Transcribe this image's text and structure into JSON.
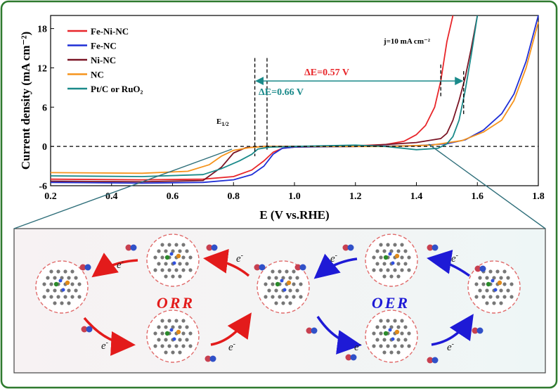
{
  "chart_data": {
    "type": "line",
    "title": "",
    "xlabel": "E (V vs.RHE)",
    "ylabel": "Current density (mA cm⁻²)",
    "xlim": [
      0.2,
      1.8
    ],
    "ylim": [
      -6,
      20
    ],
    "xticks": [
      0.2,
      0.4,
      0.6,
      0.8,
      1.0,
      1.2,
      1.4,
      1.6,
      1.8
    ],
    "yticks": [
      -6,
      0,
      6,
      12,
      18
    ],
    "legend_position": "top-left",
    "grid": false,
    "series": [
      {
        "name": "Fe-Ni-NC",
        "color": "#e8262a",
        "points": [
          [
            0.2,
            -5.0
          ],
          [
            0.5,
            -5.1
          ],
          [
            0.7,
            -5.0
          ],
          [
            0.8,
            -4.6
          ],
          [
            0.86,
            -3.6
          ],
          [
            0.9,
            -2.2
          ],
          [
            0.93,
            -0.9
          ],
          [
            0.96,
            -0.3
          ],
          [
            1.0,
            -0.1
          ],
          [
            1.1,
            0.0
          ],
          [
            1.2,
            0.1
          ],
          [
            1.3,
            0.3
          ],
          [
            1.36,
            0.8
          ],
          [
            1.4,
            1.8
          ],
          [
            1.43,
            3.2
          ],
          [
            1.46,
            6.0
          ],
          [
            1.48,
            10.0
          ],
          [
            1.5,
            16.0
          ],
          [
            1.52,
            20.0
          ]
        ]
      },
      {
        "name": "Fe-NC",
        "color": "#1f2fd6",
        "points": [
          [
            0.2,
            -5.5
          ],
          [
            0.5,
            -5.6
          ],
          [
            0.7,
            -5.5
          ],
          [
            0.8,
            -5.1
          ],
          [
            0.86,
            -4.3
          ],
          [
            0.9,
            -3.0
          ],
          [
            0.93,
            -1.2
          ],
          [
            0.96,
            -0.3
          ],
          [
            1.0,
            -0.1
          ],
          [
            1.2,
            0.0
          ],
          [
            1.4,
            0.1
          ],
          [
            1.5,
            0.4
          ],
          [
            1.56,
            1.0
          ],
          [
            1.62,
            2.5
          ],
          [
            1.68,
            5.0
          ],
          [
            1.72,
            8.0
          ],
          [
            1.76,
            13.0
          ],
          [
            1.8,
            20.0
          ]
        ]
      },
      {
        "name": "Ni-NC",
        "color": "#7a1424",
        "points": [
          [
            0.2,
            -5.3
          ],
          [
            0.5,
            -5.4
          ],
          [
            0.7,
            -5.2
          ],
          [
            0.76,
            -3.2
          ],
          [
            0.8,
            -1.0
          ],
          [
            0.84,
            -0.2
          ],
          [
            0.9,
            0.0
          ],
          [
            1.2,
            0.0
          ],
          [
            1.4,
            0.6
          ],
          [
            1.48,
            1.2
          ],
          [
            1.5,
            2.0
          ],
          [
            1.52,
            4.0
          ],
          [
            1.54,
            7.0
          ],
          [
            1.56,
            10.5
          ],
          [
            1.58,
            15.0
          ],
          [
            1.6,
            20.0
          ]
        ]
      },
      {
        "name": "NC",
        "color": "#f5941d",
        "points": [
          [
            0.2,
            -4.0
          ],
          [
            0.5,
            -4.1
          ],
          [
            0.65,
            -3.8
          ],
          [
            0.72,
            -2.8
          ],
          [
            0.76,
            -1.5
          ],
          [
            0.8,
            -0.6
          ],
          [
            0.85,
            -0.2
          ],
          [
            0.9,
            0.0
          ],
          [
            1.3,
            0.0
          ],
          [
            1.45,
            0.2
          ],
          [
            1.55,
            0.9
          ],
          [
            1.62,
            2.2
          ],
          [
            1.68,
            4.0
          ],
          [
            1.72,
            7.0
          ],
          [
            1.76,
            12.0
          ],
          [
            1.8,
            19.0
          ]
        ]
      },
      {
        "name": "Pt/C or RuO₂",
        "color": "#1a8a8a",
        "points": [
          [
            0.2,
            -4.5
          ],
          [
            0.5,
            -4.6
          ],
          [
            0.7,
            -4.3
          ],
          [
            0.76,
            -3.4
          ],
          [
            0.82,
            -2.2
          ],
          [
            0.86,
            -1.2
          ],
          [
            0.88,
            -0.4
          ],
          [
            0.92,
            -0.1
          ],
          [
            1.0,
            0.0
          ],
          [
            1.2,
            0.2
          ],
          [
            1.3,
            0.0
          ],
          [
            1.4,
            -0.5
          ],
          [
            1.47,
            -0.3
          ],
          [
            1.5,
            0.4
          ],
          [
            1.52,
            1.5
          ],
          [
            1.54,
            4.0
          ],
          [
            1.56,
            8.5
          ],
          [
            1.58,
            14.0
          ],
          [
            1.6,
            20.0
          ]
        ]
      }
    ],
    "annotations": {
      "delta_red": "ΔE=0.57 V",
      "delta_teal": "ΔE=0.66 V",
      "j10": "j=10 mA cm⁻²",
      "e_half": "E",
      "e_half_sub": "1/2"
    }
  },
  "mechanism": {
    "orr_label": "ORR",
    "oer_label": "OER",
    "electron_label": "e",
    "electron_sup": "-",
    "colors": {
      "orr": "#e31b1b",
      "oer": "#1e1ad6",
      "frame": "#2e7a2e"
    }
  }
}
